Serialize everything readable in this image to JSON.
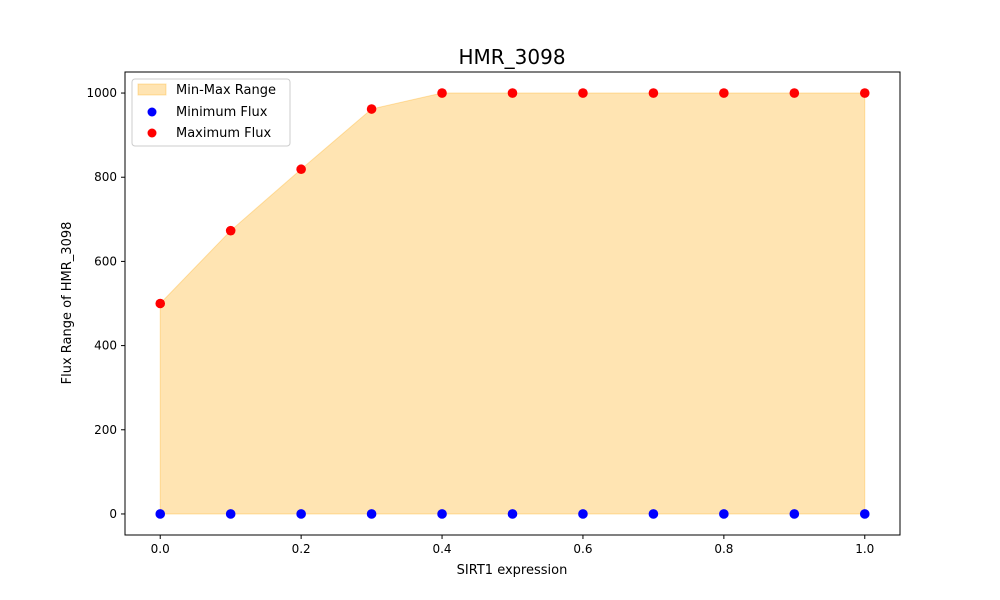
{
  "chart_data": {
    "type": "scatter",
    "title": "HMR_3098",
    "xlabel": "SIRT1 expression",
    "ylabel": "Flux Range of HMR_3098",
    "x": [
      0.0,
      0.1,
      0.2,
      0.3,
      0.4,
      0.5,
      0.6,
      0.7,
      0.8,
      0.9,
      1.0
    ],
    "series": [
      {
        "name": "Minimum Flux",
        "kind": "scatter",
        "color": "#0000ff",
        "values": [
          0,
          0,
          0,
          0,
          0,
          0,
          0,
          0,
          0,
          0,
          0
        ]
      },
      {
        "name": "Maximum Flux",
        "kind": "scatter",
        "color": "#ff0000",
        "values": [
          500,
          673,
          819,
          962,
          1000,
          1000,
          1000,
          1000,
          1000,
          1000,
          1000
        ]
      }
    ],
    "fill": {
      "name": "Min-Max Range",
      "color": "#ffa500",
      "opacity": 0.3
    },
    "xlim": [
      -0.05,
      1.05
    ],
    "ylim": [
      -50,
      1050
    ],
    "xticks": [
      0.0,
      0.2,
      0.4,
      0.6,
      0.8,
      1.0
    ],
    "xtick_labels": [
      "0.0",
      "0.2",
      "0.4",
      "0.6",
      "0.8",
      "1.0"
    ],
    "yticks": [
      0,
      200,
      400,
      600,
      800,
      1000
    ],
    "ytick_labels": [
      "0",
      "200",
      "400",
      "600",
      "800",
      "1000"
    ],
    "grid": false,
    "legend_position": "top-left"
  }
}
